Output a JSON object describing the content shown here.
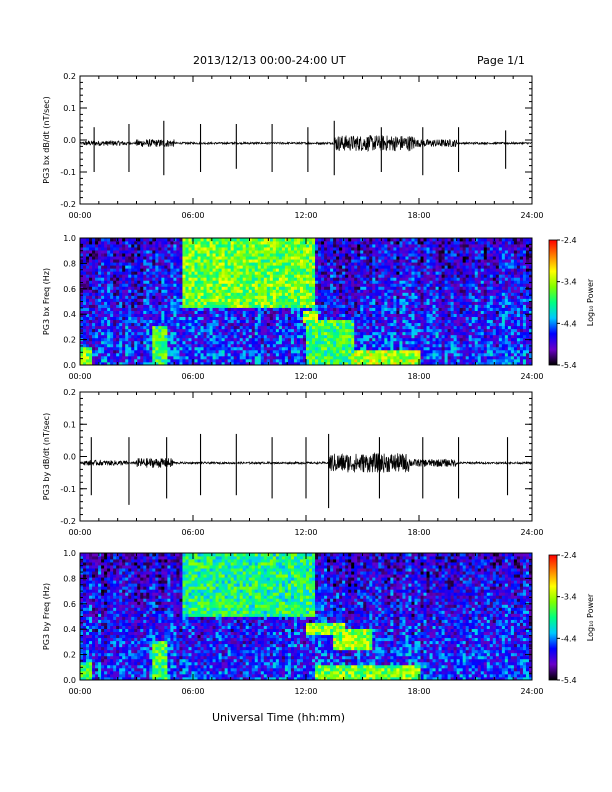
{
  "header": {
    "title": "2013/12/13  00:00-24:00 UT",
    "page": "Page 1/1"
  },
  "footer": {
    "xlabel": "Universal Time (hh:mm)"
  },
  "chart_data": [
    {
      "type": "line",
      "ylabel": "PG3 bx dB/dt (nT/sec)",
      "xlim": [
        0,
        24
      ],
      "ylim": [
        -0.2,
        0.2
      ],
      "x_ticks": [
        "00:00",
        "06:00",
        "12:00",
        "18:00",
        "24:00"
      ],
      "y_ticks": [
        "-0.2",
        "-0.1",
        "0.0",
        "0.1",
        "0.2"
      ],
      "y_tick_values": [
        -0.2,
        -0.1,
        0.0,
        0.1,
        0.2
      ],
      "baseline": -0.01,
      "color": "#000000",
      "spikes": [
        {
          "x": 0.75,
          "up": 0.05,
          "down": -0.09
        },
        {
          "x": 2.6,
          "up": 0.06,
          "down": -0.09
        },
        {
          "x": 4.45,
          "up": 0.07,
          "down": -0.1
        },
        {
          "x": 6.4,
          "up": 0.06,
          "down": -0.09
        },
        {
          "x": 8.3,
          "up": 0.06,
          "down": -0.08
        },
        {
          "x": 10.2,
          "up": 0.06,
          "down": -0.09
        },
        {
          "x": 12.1,
          "up": 0.05,
          "down": -0.09
        },
        {
          "x": 13.5,
          "up": 0.07,
          "down": -0.1
        },
        {
          "x": 16.0,
          "up": 0.05,
          "down": -0.09
        },
        {
          "x": 18.2,
          "up": 0.05,
          "down": -0.1
        },
        {
          "x": 20.1,
          "up": 0.05,
          "down": -0.09
        },
        {
          "x": 22.6,
          "up": 0.04,
          "down": -0.08
        }
      ],
      "activity_windows": [
        {
          "x0": 0.2,
          "x1": 2.5,
          "amp": 0.008
        },
        {
          "x0": 3.0,
          "x1": 5.0,
          "amp": 0.012
        },
        {
          "x0": 13.5,
          "x1": 17.8,
          "amp": 0.025
        },
        {
          "x0": 17.8,
          "x1": 20.0,
          "amp": 0.012
        }
      ]
    },
    {
      "type": "heatmap",
      "ylabel": "PG3 bx Freq (Hz)",
      "xlim": [
        0,
        24
      ],
      "ylim": [
        0,
        1.0
      ],
      "x_ticks": [
        "00:00",
        "06:00",
        "12:00",
        "18:00",
        "24:00"
      ],
      "y_ticks": [
        "0.0",
        "0.2",
        "0.4",
        "0.6",
        "0.8",
        "1.0"
      ],
      "y_tick_values": [
        0.0,
        0.2,
        0.4,
        0.6,
        0.8,
        1.0
      ],
      "colorbar": {
        "label": "Log₁₀ Power",
        "ticks": [
          "-2.4",
          "-3.4",
          "-4.4",
          "-5.4"
        ],
        "tick_values": [
          -2.4,
          -3.4,
          -4.4,
          -5.4
        ],
        "range": [
          -5.4,
          -2.4
        ],
        "colors": [
          "#000000",
          "#6a00c8",
          "#0000ff",
          "#00c8ff",
          "#00ff80",
          "#80ff00",
          "#ffff00",
          "#ff8000",
          "#ff0000"
        ]
      },
      "features": [
        {
          "x0": 5.5,
          "x1": 12.5,
          "f0": 0.45,
          "f1": 1.0,
          "level": -3.6
        },
        {
          "x0": 12.0,
          "x1": 14.5,
          "f0": 0.0,
          "f1": 0.35,
          "level": -3.8
        },
        {
          "x0": 14.5,
          "x1": 18.0,
          "f0": 0.0,
          "f1": 0.12,
          "level": -3.4
        },
        {
          "x0": 11.8,
          "x1": 12.6,
          "f0": 0.33,
          "f1": 0.43,
          "level": -3.5
        },
        {
          "x0": 0.0,
          "x1": 0.6,
          "f0": 0.0,
          "f1": 0.15,
          "level": -3.6
        },
        {
          "x0": 3.9,
          "x1": 4.6,
          "f0": 0.0,
          "f1": 0.3,
          "level": -3.8
        }
      ],
      "background_level": -4.6
    },
    {
      "type": "line",
      "ylabel": "PG3 by dB/dt (nT/sec)",
      "xlim": [
        0,
        24
      ],
      "ylim": [
        -0.2,
        0.2
      ],
      "x_ticks": [
        "00:00",
        "06:00",
        "12:00",
        "18:00",
        "24:00"
      ],
      "y_ticks": [
        "-0.2",
        "-0.1",
        "0.0",
        "0.1",
        "0.2"
      ],
      "y_tick_values": [
        -0.2,
        -0.1,
        0.0,
        0.1,
        0.2
      ],
      "baseline": -0.02,
      "color": "#000000",
      "spikes": [
        {
          "x": 0.6,
          "up": 0.08,
          "down": -0.1
        },
        {
          "x": 2.6,
          "up": 0.08,
          "down": -0.13
        },
        {
          "x": 4.6,
          "up": 0.08,
          "down": -0.11
        },
        {
          "x": 6.4,
          "up": 0.09,
          "down": -0.1
        },
        {
          "x": 8.3,
          "up": 0.09,
          "down": -0.1
        },
        {
          "x": 10.2,
          "up": 0.08,
          "down": -0.11
        },
        {
          "x": 12.0,
          "up": 0.08,
          "down": -0.11
        },
        {
          "x": 13.2,
          "up": 0.09,
          "down": -0.14
        },
        {
          "x": 15.9,
          "up": 0.08,
          "down": -0.11
        },
        {
          "x": 18.2,
          "up": 0.08,
          "down": -0.11
        },
        {
          "x": 20.1,
          "up": 0.08,
          "down": -0.11
        },
        {
          "x": 22.7,
          "up": 0.08,
          "down": -0.1
        }
      ],
      "activity_windows": [
        {
          "x0": 0.2,
          "x1": 2.5,
          "amp": 0.008
        },
        {
          "x0": 3.0,
          "x1": 5.0,
          "amp": 0.015
        },
        {
          "x0": 13.2,
          "x1": 17.5,
          "amp": 0.03
        },
        {
          "x0": 17.5,
          "x1": 20.0,
          "amp": 0.012
        }
      ]
    },
    {
      "type": "heatmap",
      "ylabel": "PG3 by Freq (Hz)",
      "xlim": [
        0,
        24
      ],
      "ylim": [
        0,
        1.0
      ],
      "x_ticks": [
        "00:00",
        "06:00",
        "12:00",
        "18:00",
        "24:00"
      ],
      "y_ticks": [
        "0.0",
        "0.2",
        "0.4",
        "0.6",
        "0.8",
        "1.0"
      ],
      "y_tick_values": [
        0.0,
        0.2,
        0.4,
        0.6,
        0.8,
        1.0
      ],
      "colorbar": {
        "label": "Log₁₀ Power",
        "ticks": [
          "-2.4",
          "-3.4",
          "-4.4",
          "-5.4"
        ],
        "tick_values": [
          -2.4,
          -3.4,
          -4.4,
          -5.4
        ],
        "range": [
          -5.4,
          -2.4
        ],
        "colors": [
          "#000000",
          "#6a00c8",
          "#0000ff",
          "#00c8ff",
          "#00ff80",
          "#80ff00",
          "#ffff00",
          "#ff8000",
          "#ff0000"
        ]
      },
      "features": [
        {
          "x0": 5.5,
          "x1": 12.5,
          "f0": 0.5,
          "f1": 1.0,
          "level": -3.9
        },
        {
          "x0": 12.0,
          "x1": 14.0,
          "f0": 0.35,
          "f1": 0.45,
          "level": -3.6
        },
        {
          "x0": 13.5,
          "x1": 15.5,
          "f0": 0.25,
          "f1": 0.4,
          "level": -3.5
        },
        {
          "x0": 12.5,
          "x1": 18.0,
          "f0": 0.0,
          "f1": 0.12,
          "level": -3.6
        },
        {
          "x0": 0.0,
          "x1": 0.6,
          "f0": 0.0,
          "f1": 0.15,
          "level": -3.8
        },
        {
          "x0": 3.9,
          "x1": 4.6,
          "f0": 0.0,
          "f1": 0.3,
          "level": -3.8
        }
      ],
      "background_level": -4.6
    }
  ]
}
